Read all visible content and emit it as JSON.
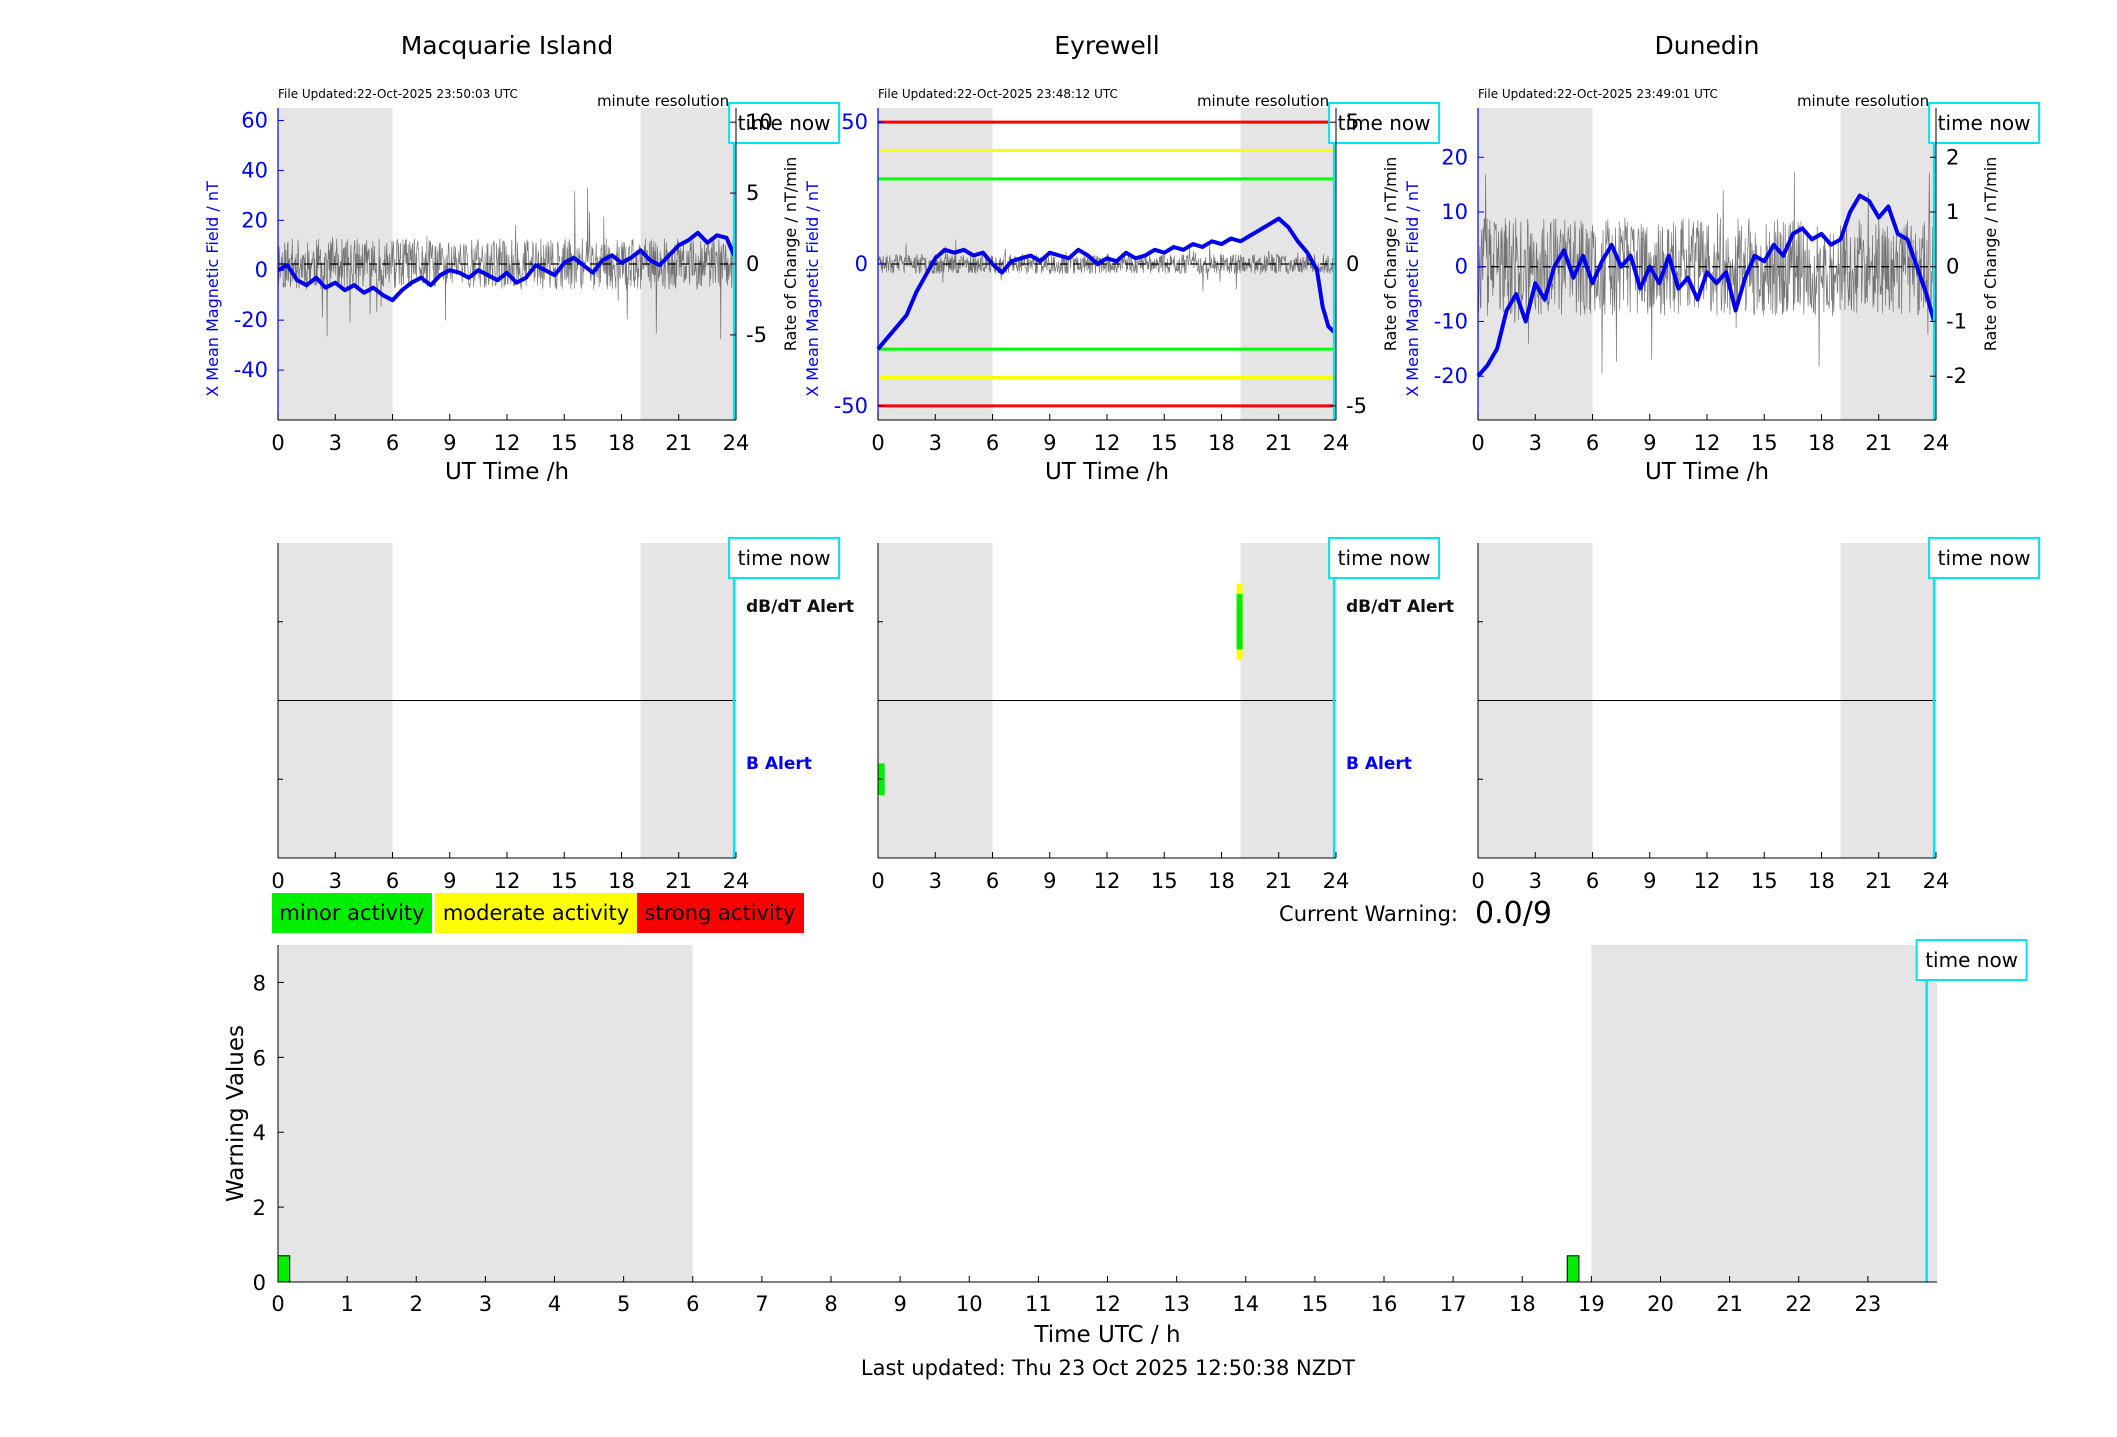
{
  "chart_data": [
    {
      "type": "line",
      "title": "Macquarie Island",
      "file_updated": "File Updated:22-Oct-2025 23:50:03 UTC",
      "resolution": "minute resolution",
      "time_now_label": "time now",
      "time_now": 23.9,
      "xlabel": "UT Time /h",
      "ylabel_left": "X Mean Magnetic Field / nT",
      "ylabel_right": "Rate of Change / nT/min",
      "xlim": [
        0,
        24
      ],
      "ylim_left": [
        -60,
        65
      ],
      "ylim_right": [
        -11,
        11
      ],
      "xticks": [
        0,
        3,
        6,
        9,
        12,
        15,
        18,
        21,
        24
      ],
      "yticks_left": [
        60,
        40,
        20,
        0,
        -20,
        -40
      ],
      "yticks_right": [
        10,
        5,
        0,
        -5
      ],
      "night_shading": [
        [
          0,
          6
        ],
        [
          19,
          24
        ]
      ],
      "threshold_lines": [],
      "colors": {
        "field": "#0000ee",
        "rate": "#555555",
        "shade": "#e5e5e5",
        "time_now": "#00e5ee"
      },
      "series": [
        {
          "name": "X Mean Magnetic Field",
          "axis": "left",
          "x": [
            0,
            0.5,
            1,
            1.5,
            2,
            2.5,
            3,
            3.5,
            4,
            4.5,
            5,
            5.5,
            6,
            6.5,
            7,
            7.5,
            8,
            8.5,
            9,
            9.5,
            10,
            10.5,
            11,
            11.5,
            12,
            12.5,
            13,
            13.5,
            14,
            14.5,
            15,
            15.5,
            16,
            16.5,
            17,
            17.5,
            18,
            18.5,
            19,
            19.5,
            20,
            20.5,
            21,
            21.5,
            22,
            22.5,
            23,
            23.5,
            23.9
          ],
          "values": [
            0,
            2,
            -4,
            -6,
            -3,
            -7,
            -5,
            -8,
            -6,
            -9,
            -7,
            -10,
            -12,
            -8,
            -5,
            -3,
            -6,
            -2,
            0,
            -1,
            -3,
            0,
            -2,
            -4,
            -1,
            -5,
            -3,
            2,
            0,
            -2,
            3,
            5,
            2,
            -1,
            4,
            6,
            3,
            5,
            8,
            4,
            2,
            6,
            10,
            12,
            15,
            11,
            14,
            13,
            6
          ]
        },
        {
          "name": "Rate of Change",
          "axis": "right",
          "noise_amplitude": 1.8,
          "seed": 11
        }
      ]
    },
    {
      "type": "line",
      "title": "Eyrewell",
      "file_updated": "File Updated:22-Oct-2025 23:48:12 UTC",
      "resolution": "minute resolution",
      "time_now_label": "time now",
      "time_now": 23.9,
      "xlabel": "UT Time /h",
      "ylabel_left": "X Mean Magnetic Field / nT",
      "ylabel_right": "Rate of Change / nT/min",
      "xlim": [
        0,
        24
      ],
      "ylim_left": [
        -55,
        55
      ],
      "ylim_right": [
        -5.5,
        5.5
      ],
      "xticks": [
        0,
        3,
        6,
        9,
        12,
        15,
        18,
        21,
        24
      ],
      "yticks_left": [
        50,
        0,
        -50
      ],
      "yticks_right": [
        5,
        0,
        -5
      ],
      "night_shading": [
        [
          0,
          6
        ],
        [
          19,
          24
        ]
      ],
      "threshold_lines": [
        {
          "value": 50,
          "color": "#ff0000"
        },
        {
          "value": 40,
          "color": "#ffff00"
        },
        {
          "value": 30,
          "color": "#00ff00"
        },
        {
          "value": -30,
          "color": "#00ff00"
        },
        {
          "value": -40,
          "color": "#ffff00"
        },
        {
          "value": -50,
          "color": "#ff0000"
        }
      ],
      "colors": {
        "field": "#0000ee",
        "rate": "#555555",
        "shade": "#e5e5e5",
        "time_now": "#00e5ee"
      },
      "series": [
        {
          "name": "X Mean Magnetic Field",
          "axis": "left",
          "x": [
            0,
            0.5,
            1,
            1.5,
            2,
            2.5,
            3,
            3.5,
            4,
            4.5,
            5,
            5.5,
            6,
            6.5,
            7,
            7.5,
            8,
            8.5,
            9,
            9.5,
            10,
            10.5,
            11,
            11.5,
            12,
            12.5,
            13,
            13.5,
            14,
            14.5,
            15,
            15.5,
            16,
            16.5,
            17,
            17.5,
            18,
            18.5,
            19,
            19.5,
            20,
            20.5,
            21,
            21.5,
            22,
            22.5,
            23,
            23.3,
            23.6,
            23.9
          ],
          "values": [
            -30,
            -26,
            -22,
            -18,
            -10,
            -4,
            2,
            5,
            4,
            5,
            3,
            4,
            0,
            -3,
            1,
            2,
            3,
            1,
            4,
            3,
            2,
            5,
            3,
            0,
            2,
            1,
            4,
            2,
            3,
            5,
            4,
            6,
            5,
            7,
            6,
            8,
            7,
            9,
            8,
            10,
            12,
            14,
            16,
            13,
            8,
            4,
            -2,
            -15,
            -22,
            -24
          ]
        },
        {
          "name": "Rate of Change",
          "axis": "right",
          "noise_amplitude": 0.35,
          "seed": 23
        }
      ]
    },
    {
      "type": "line",
      "title": "Dunedin",
      "file_updated": "File Updated:22-Oct-2025 23:49:01 UTC",
      "resolution": "minute resolution",
      "time_now_label": "time now",
      "time_now": 23.9,
      "xlabel": "UT Time /h",
      "ylabel_left": "X Mean Magnetic Field / nT",
      "ylabel_right": "Rate of Change / nT/min",
      "xlim": [
        0,
        24
      ],
      "ylim_left": [
        -28,
        29
      ],
      "ylim_right": [
        -2.8,
        2.9
      ],
      "xticks": [
        0,
        3,
        6,
        9,
        12,
        15,
        18,
        21,
        24
      ],
      "yticks_left": [
        20,
        10,
        0,
        -10,
        -20
      ],
      "yticks_right": [
        2,
        1,
        0,
        -1,
        -2
      ],
      "night_shading": [
        [
          0,
          6
        ],
        [
          19,
          24
        ]
      ],
      "threshold_lines": [],
      "colors": {
        "field": "#0000ee",
        "rate": "#555555",
        "shade": "#e5e5e5",
        "time_now": "#00e5ee"
      },
      "series": [
        {
          "name": "X Mean Magnetic Field",
          "axis": "left",
          "x": [
            0,
            0.5,
            1,
            1.5,
            2,
            2.5,
            3,
            3.5,
            4,
            4.5,
            5,
            5.5,
            6,
            6.5,
            7,
            7.5,
            8,
            8.5,
            9,
            9.5,
            10,
            10.5,
            11,
            11.5,
            12,
            12.5,
            13,
            13.5,
            14,
            14.5,
            15,
            15.5,
            16,
            16.5,
            17,
            17.5,
            18,
            18.5,
            19,
            19.5,
            20,
            20.5,
            21,
            21.5,
            22,
            22.5,
            23,
            23.5,
            23.9
          ],
          "values": [
            -20,
            -18,
            -15,
            -8,
            -5,
            -10,
            -3,
            -6,
            0,
            3,
            -2,
            2,
            -3,
            1,
            4,
            0,
            2,
            -4,
            0,
            -3,
            2,
            -4,
            -2,
            -6,
            -1,
            -3,
            -1,
            -8,
            -2,
            2,
            1,
            4,
            2,
            6,
            7,
            5,
            6,
            4,
            5,
            10,
            13,
            12,
            9,
            11,
            6,
            5,
            0,
            -5,
            -10
          ]
        },
        {
          "name": "Rate of Change",
          "axis": "right",
          "noise_amplitude": 0.9,
          "seed": 37
        }
      ]
    },
    {
      "type": "bar",
      "station": "Macquarie Island",
      "time_now_label": "time now",
      "time_now": 23.9,
      "xlim": [
        0,
        24
      ],
      "xticks": [
        0,
        3,
        6,
        9,
        12,
        15,
        18,
        21,
        24
      ],
      "night_shading": [
        [
          0,
          6
        ],
        [
          19,
          24
        ]
      ],
      "label_top": "dB/dT Alert",
      "label_bottom": "B Alert",
      "dbdt_alerts": [],
      "b_alerts": []
    },
    {
      "type": "bar",
      "station": "Eyrewell",
      "time_now_label": "time now",
      "time_now": 23.9,
      "xlim": [
        0,
        24
      ],
      "xticks": [
        0,
        3,
        6,
        9,
        12,
        15,
        18,
        21,
        24
      ],
      "night_shading": [
        [
          0,
          6
        ],
        [
          19,
          24
        ]
      ],
      "label_top": "dB/dT Alert",
      "label_bottom": "B Alert",
      "dbdt_alerts": [
        {
          "start": 18.95,
          "end": 19.05,
          "level": "moderate"
        },
        {
          "start": 18.95,
          "end": 19.05,
          "level": "minor"
        }
      ],
      "b_alerts": [
        {
          "start": 0,
          "end": 0.35,
          "level": "minor"
        }
      ]
    },
    {
      "type": "bar",
      "station": "Dunedin",
      "time_now_label": "time now",
      "time_now": 23.9,
      "xlim": [
        0,
        24
      ],
      "xticks": [
        0,
        3,
        6,
        9,
        12,
        15,
        18,
        21,
        24
      ],
      "night_shading": [
        [
          0,
          6
        ],
        [
          19,
          24
        ]
      ],
      "label_top": "",
      "label_bottom": "",
      "dbdt_alerts": [],
      "b_alerts": []
    },
    {
      "type": "bar",
      "title": "",
      "xlabel": "Time UTC / h",
      "ylabel": "Warning Values",
      "time_now_label": "time now",
      "time_now": 23.85,
      "xlim": [
        0,
        24
      ],
      "ylim": [
        0,
        9
      ],
      "xticks": [
        0,
        1,
        2,
        3,
        4,
        5,
        6,
        7,
        8,
        9,
        10,
        11,
        12,
        13,
        14,
        15,
        16,
        17,
        18,
        19,
        20,
        21,
        22,
        23
      ],
      "yticks": [
        0,
        2,
        4,
        6,
        8
      ],
      "night_shading": [
        [
          0,
          6
        ],
        [
          19,
          24
        ]
      ],
      "bars": [
        {
          "x": 0,
          "width": 0.17,
          "value": 0.7,
          "level": "minor"
        },
        {
          "x": 18.65,
          "width": 0.17,
          "value": 0.7,
          "level": "minor"
        }
      ]
    }
  ],
  "legend": {
    "items": [
      {
        "label": "minor activity",
        "color": "#00ee00"
      },
      {
        "label": "moderate activity",
        "color": "#ffff00"
      },
      {
        "label": "strong activity",
        "color": "#ff0000"
      }
    ]
  },
  "level_colors": {
    "minor": "#00ee00",
    "moderate": "#ffff00",
    "strong": "#ff0000"
  },
  "warning": {
    "label": "Current Warning:",
    "value": "0.0/9"
  },
  "footer": {
    "last_updated": "Last updated: Thu 23 Oct 2025 12:50:38 NZDT"
  }
}
